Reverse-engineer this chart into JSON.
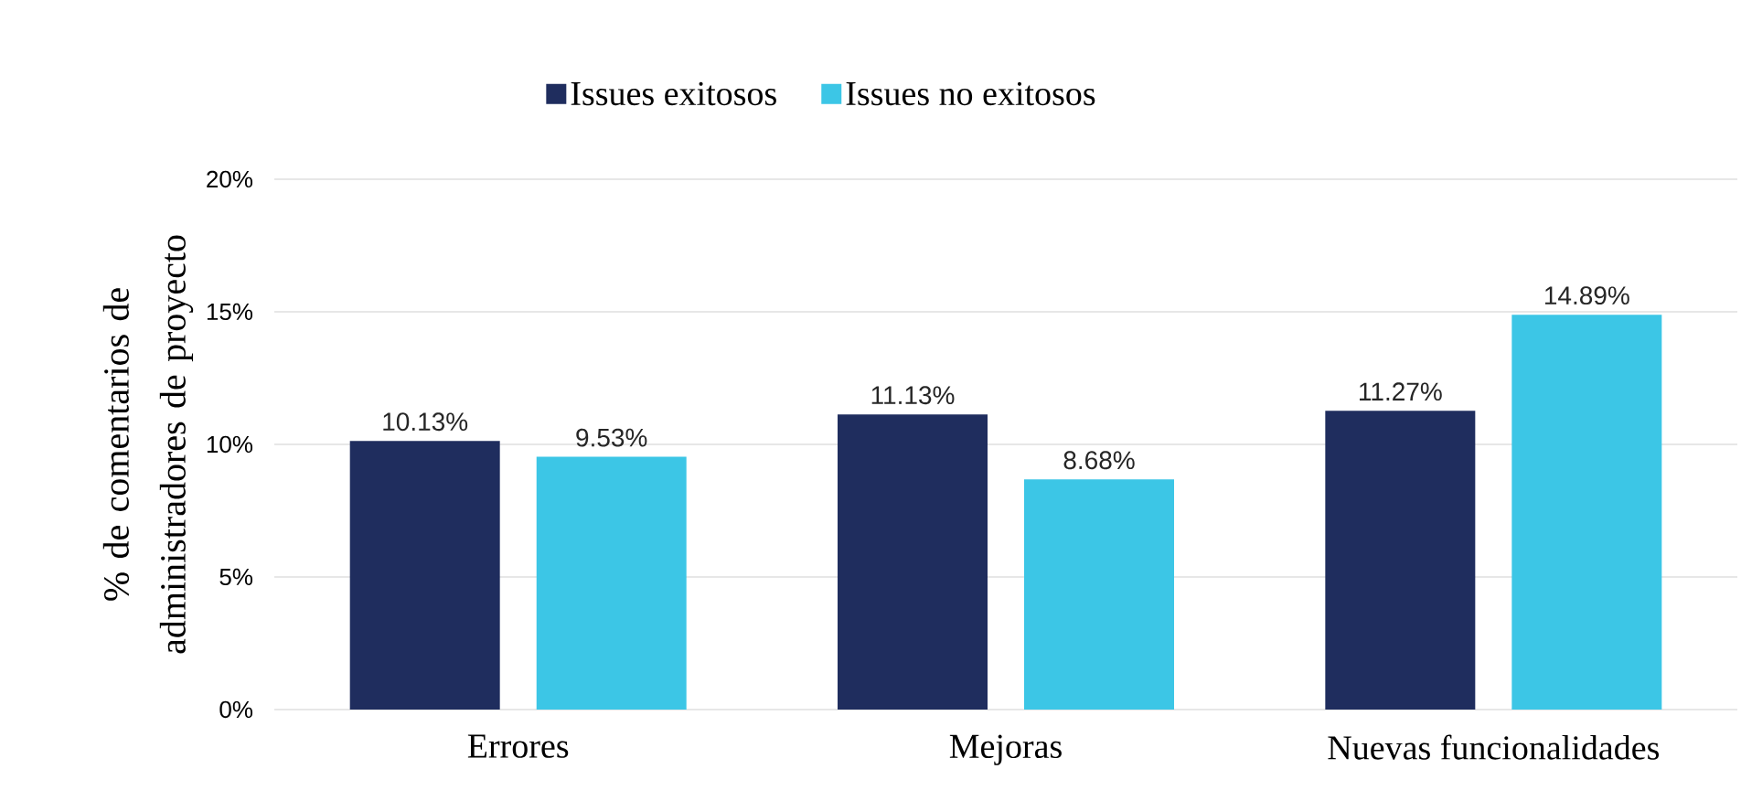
{
  "chart_data": {
    "type": "bar",
    "ylabel": "% de comentarios de administradores de proyecto",
    "categories": [
      "Errores",
      "Mejoras",
      "Nuevas funcionalidades"
    ],
    "series": [
      {
        "name": "Issues exitosos",
        "color": "#1f2d5e",
        "values": [
          10.13,
          11.13,
          11.27
        ],
        "value_labels": [
          "10.13%",
          "11.13%",
          "11.27%"
        ]
      },
      {
        "name": "Issues no exitosos",
        "color": "#3cc6e6",
        "values": [
          9.53,
          8.68,
          14.89
        ],
        "value_labels": [
          "9.53%",
          "8.68%",
          "14.89%"
        ]
      }
    ],
    "ylim": [
      0,
      20
    ],
    "yticks": [
      {
        "value": 0,
        "label": "0%"
      },
      {
        "value": 5,
        "label": "5%"
      },
      {
        "value": 10,
        "label": "10%"
      },
      {
        "value": 15,
        "label": "15%"
      },
      {
        "value": 20,
        "label": "20%"
      }
    ],
    "grid": "y",
    "legend": "top"
  }
}
